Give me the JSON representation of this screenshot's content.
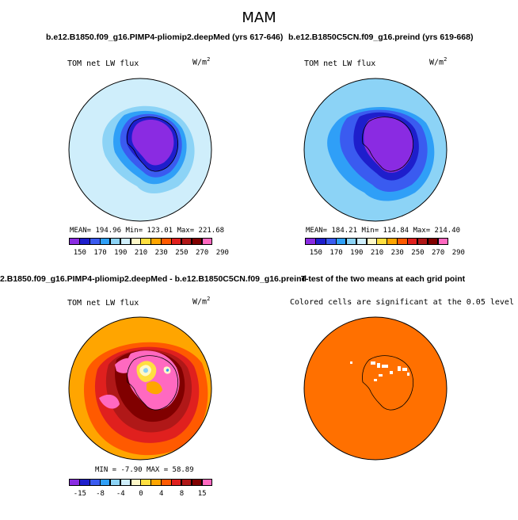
{
  "figure": {
    "season": "MAM"
  },
  "panels": [
    {
      "title": "b.e12.B1850.f09_g16.PIMP4-pliomip2.deepMed (yrs 617-646)",
      "left_label": "TOM net LW flux",
      "units": "W/m",
      "units_exp": "2",
      "stats": "MEAN= 194.96   Min= 123.01   Max= 221.68",
      "colorbar": {
        "colors": [
          "#8a2be2",
          "#1e1ecc",
          "#3a5bf0",
          "#2f9ff7",
          "#8cd3f6",
          "#cfeefb",
          "#fff8c8",
          "#ffdf40",
          "#ffa500",
          "#ff5a00",
          "#e0201e",
          "#b01818",
          "#800000",
          "#ff69c0"
        ],
        "tick_labels": [
          "150",
          "170",
          "190",
          "210",
          "230",
          "250",
          "270",
          "290"
        ]
      }
    },
    {
      "title": "b.e12.B1850C5CN.f09_g16.preind (yrs 619-668)",
      "left_label": "TOM net LW flux",
      "units": "W/m",
      "units_exp": "2",
      "stats": "MEAN= 184.21   Min= 114.84   Max= 214.40",
      "colorbar": {
        "colors": [
          "#8a2be2",
          "#1e1ecc",
          "#3a5bf0",
          "#2f9ff7",
          "#8cd3f6",
          "#cfeefb",
          "#fff8c8",
          "#ffdf40",
          "#ffa500",
          "#ff5a00",
          "#e0201e",
          "#b01818",
          "#800000",
          "#ff69c0"
        ],
        "tick_labels": [
          "150",
          "170",
          "190",
          "210",
          "230",
          "250",
          "270",
          "290"
        ]
      }
    },
    {
      "title": "2.B1850.f09_g16.PIMP4-pliomip2.deepMed - b.e12.B1850C5CN.f09_g16.preind",
      "left_label": "TOM net LW flux",
      "units": "W/m",
      "units_exp": "2",
      "stats": "MIN =  -7.90 MAX =  58.89",
      "colorbar": {
        "colors": [
          "#8a2be2",
          "#1e1ecc",
          "#3a5bf0",
          "#2f9ff7",
          "#8cd3f6",
          "#cfeefb",
          "#fff8c8",
          "#ffdf40",
          "#ffa500",
          "#ff5a00",
          "#e0201e",
          "#b01818",
          "#800000",
          "#ff69c0"
        ],
        "tick_labels": [
          "-15",
          "-8",
          "-4",
          "0",
          "4",
          "8",
          "15"
        ]
      }
    },
    {
      "title": "T-test of the two means at each grid point",
      "note": "Colored cells are significant at the 0.05 level",
      "fill_color": "#ff7000"
    }
  ]
}
